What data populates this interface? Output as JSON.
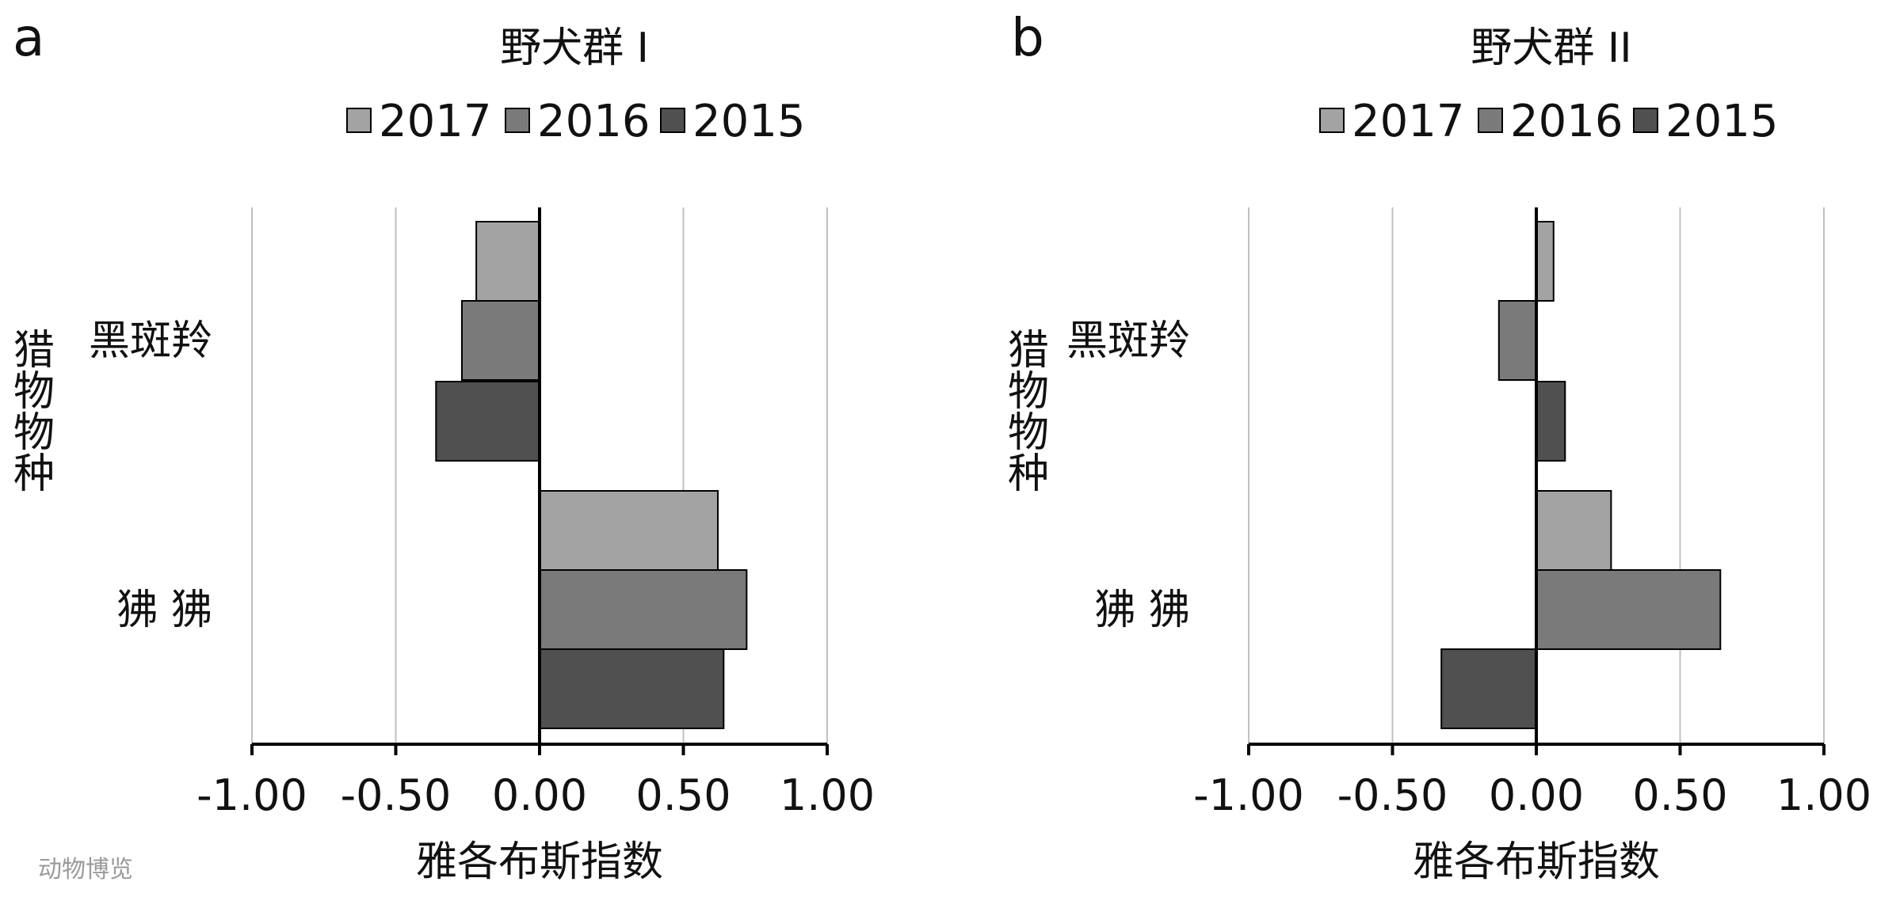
{
  "watermark": "动物博览",
  "colors": {
    "series": [
      "#a3a3a3",
      "#7a7a7a",
      "#505050"
    ],
    "gridline": "#c0c0c0",
    "axis": "#000000"
  },
  "chart_data": [
    {
      "type": "bar",
      "orientation": "horizontal",
      "panel_label": "a",
      "title": "野犬群 I",
      "xlabel": "雅各布斯指数",
      "ylabel": "猎物物种",
      "xlim": [
        -1.0,
        1.0
      ],
      "xticks": [
        "-1.00",
        "-0.50",
        "0.00",
        "0.50",
        "1.00"
      ],
      "grid": true,
      "legend": "top",
      "categories": [
        "黑斑羚",
        "狒 狒"
      ],
      "series": [
        {
          "name": "2017",
          "values": [
            -0.22,
            0.62
          ]
        },
        {
          "name": "2016",
          "values": [
            -0.27,
            0.72
          ]
        },
        {
          "name": "2015",
          "values": [
            -0.36,
            0.64
          ]
        }
      ]
    },
    {
      "type": "bar",
      "orientation": "horizontal",
      "panel_label": "b",
      "title": "野犬群 II",
      "xlabel": "雅各布斯指数",
      "ylabel": "猎物物种",
      "xlim": [
        -1.0,
        1.0
      ],
      "xticks": [
        "-1.00",
        "-0.50",
        "0.00",
        "0.50",
        "1.00"
      ],
      "grid": true,
      "legend": "top",
      "categories": [
        "黑斑羚",
        "狒 狒"
      ],
      "series": [
        {
          "name": "2017",
          "values": [
            0.06,
            0.26
          ]
        },
        {
          "name": "2016",
          "values": [
            -0.13,
            0.64
          ]
        },
        {
          "name": "2015",
          "values": [
            0.1,
            -0.33
          ]
        }
      ]
    }
  ]
}
